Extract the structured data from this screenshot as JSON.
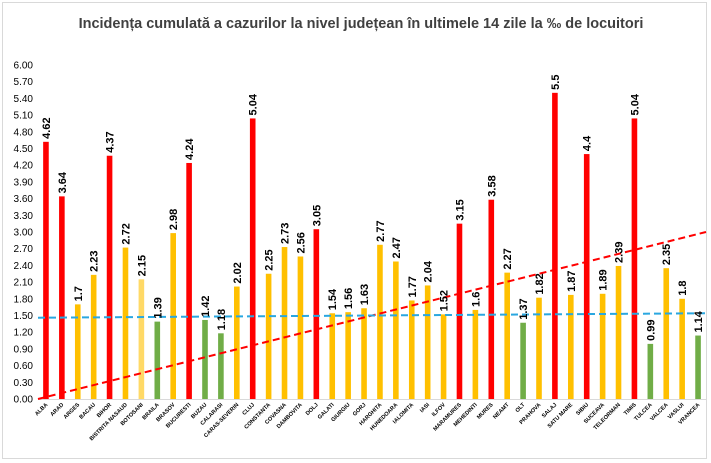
{
  "chart_data": {
    "type": "bar",
    "title": "Incidența cumulată a cazurilor la nivel județean în ultimele 14 zile la ‰ de locuitori",
    "xlabel": "",
    "ylabel": "",
    "ylim": [
      0,
      6.0
    ],
    "yticks": [
      "0.00",
      "0.30",
      "0.60",
      "0.90",
      "1.20",
      "1.50",
      "1.80",
      "2.10",
      "2.40",
      "2.70",
      "3.00",
      "3.30",
      "3.60",
      "3.90",
      "4.20",
      "4.50",
      "4.80",
      "5.10",
      "5.40",
      "5.70",
      "6.00"
    ],
    "grid": false,
    "categories": [
      "ALBA",
      "ARAD",
      "ARGES",
      "BACAU",
      "BIHOR",
      "BISTRITA NASAUD",
      "BOTOSANI",
      "BRAILA",
      "BRASOV",
      "BUCURESTI",
      "BUZAU",
      "CALARASI",
      "CARAS-SEVERIN",
      "CLUJ",
      "CONSTANTA",
      "COVASNA",
      "DAMBOVITA",
      "DOLJ",
      "GALATI",
      "GIURGIU",
      "GORJ",
      "HARGHITA",
      "HUNEDOARA",
      "IALOMITA",
      "IASI",
      "ILFOV",
      "MARAMURES",
      "MEHEDINTI",
      "MURES",
      "NEAMT",
      "OLT",
      "PRAHOVA",
      "SALAJ",
      "SATU MARE",
      "SIBIU",
      "SUCEAVA",
      "TELEORMAN",
      "TIMIS",
      "TULCEA",
      "VALCEA",
      "VASLUI",
      "VRANCEA"
    ],
    "values": [
      4.62,
      3.64,
      1.7,
      2.23,
      4.37,
      2.72,
      2.15,
      1.39,
      2.98,
      4.24,
      1.42,
      1.18,
      2.02,
      5.04,
      2.25,
      2.73,
      2.56,
      3.05,
      1.54,
      1.56,
      1.63,
      2.77,
      2.47,
      1.77,
      2.04,
      1.52,
      3.15,
      1.6,
      3.58,
      2.27,
      1.37,
      1.82,
      5.5,
      1.87,
      4.4,
      1.89,
      2.39,
      5.04,
      0.99,
      2.35,
      1.8,
      1.14
    ],
    "data_labels": [
      "4.62",
      "3.64",
      "1.7",
      "2.23",
      "4.37",
      "2.72",
      "2.15",
      "1.39",
      "2.98",
      "4.24",
      "1.42",
      "1.18",
      "2.02",
      "5.04",
      "2.25",
      "2.73",
      "2.56",
      "3.05",
      "1.54",
      "1.56",
      "1.63",
      "2.77",
      "2.47",
      "1.77",
      "2.04",
      "1.52",
      "3.15",
      "1.6",
      "3.58",
      "2.27",
      "1.37",
      "1.82",
      "5.5",
      "1.87",
      "4.4",
      "1.89",
      "2.39",
      "5.04",
      "0.99",
      "2.35",
      "1.8",
      "1.14"
    ],
    "color_class": [
      "red",
      "red",
      "amber",
      "amber",
      "red",
      "amber",
      "light",
      "green",
      "amber",
      "red",
      "green",
      "green",
      "amber",
      "red",
      "amber",
      "amber",
      "amber",
      "red",
      "amber",
      "amber",
      "amber",
      "amber",
      "amber",
      "amber",
      "amber",
      "amber",
      "red",
      "amber",
      "red",
      "amber",
      "green",
      "amber",
      "red",
      "amber",
      "red",
      "amber",
      "amber",
      "red",
      "green",
      "amber",
      "amber",
      "green"
    ],
    "colors": {
      "red": "#ff0000",
      "amber": "#ffc000",
      "light": "#ffd966",
      "green": "#70ad47"
    },
    "reference_lines": [
      {
        "value": 3.0,
        "color": "#ff0000",
        "style": "dashed",
        "start": 0.0,
        "end": 3.0
      },
      {
        "value": 1.5,
        "color": "#2aa7e0",
        "style": "dashed",
        "start": 1.46,
        "end": 1.54
      }
    ]
  }
}
